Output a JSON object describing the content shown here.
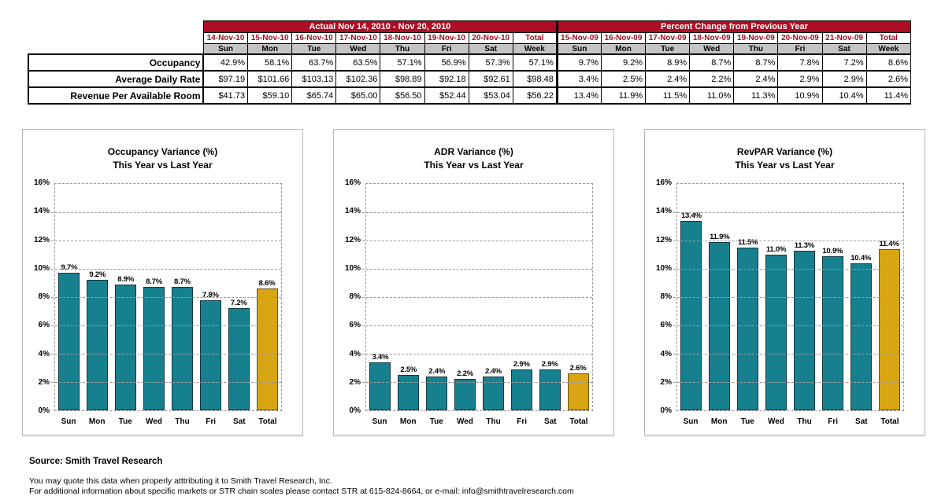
{
  "colors": {
    "header_band": "#AE0E24",
    "date_text": "#A01020",
    "day_row_bg": "#C4C4C4",
    "bar_teal": "#17808F",
    "bar_teal_border": "#113842",
    "bar_gold": "#D8A513",
    "bar_gold_border": "#6b5104"
  },
  "table": {
    "sections": [
      {
        "title": "Actual Nov 14, 2010 - Nov 20, 2010",
        "columns": [
          {
            "date": "14-Nov-10",
            "day": "Sun"
          },
          {
            "date": "15-Nov-10",
            "day": "Mon"
          },
          {
            "date": "16-Nov-10",
            "day": "Tue"
          },
          {
            "date": "17-Nov-10",
            "day": "Wed"
          },
          {
            "date": "18-Nov-10",
            "day": "Thu"
          },
          {
            "date": "19-Nov-10",
            "day": "Fri"
          },
          {
            "date": "20-Nov-10",
            "day": "Sat"
          },
          {
            "date": "Total",
            "day": "Week"
          }
        ]
      },
      {
        "title": "Percent Change from Previous Year",
        "columns": [
          {
            "date": "15-Nov-09",
            "day": "Sun"
          },
          {
            "date": "16-Nov-09",
            "day": "Mon"
          },
          {
            "date": "17-Nov-09",
            "day": "Tue"
          },
          {
            "date": "18-Nov-09",
            "day": "Wed"
          },
          {
            "date": "19-Nov-09",
            "day": "Thu"
          },
          {
            "date": "20-Nov-09",
            "day": "Fri"
          },
          {
            "date": "21-Nov-09",
            "day": "Sat"
          },
          {
            "date": "Total",
            "day": "Week"
          }
        ]
      }
    ],
    "rows": [
      {
        "label": "Occupancy",
        "values": [
          [
            "42.9%",
            "58.1%",
            "63.7%",
            "63.5%",
            "57.1%",
            "56.9%",
            "57.3%",
            "57.1%"
          ],
          [
            "9.7%",
            "9.2%",
            "8.9%",
            "8.7%",
            "8.7%",
            "7.8%",
            "7.2%",
            "8.6%"
          ]
        ]
      },
      {
        "label": "Average Daily Rate",
        "values": [
          [
            "$97.19",
            "$101.66",
            "$103.13",
            "$102.36",
            "$98.89",
            "$92.18",
            "$92.61",
            "$98.48"
          ],
          [
            "3.4%",
            "2.5%",
            "2.4%",
            "2.2%",
            "2.4%",
            "2.9%",
            "2.9%",
            "2.6%"
          ]
        ]
      },
      {
        "label": "Revenue Per Available Room",
        "values": [
          [
            "$41.73",
            "$59.10",
            "$65.74",
            "$65.00",
            "$56.50",
            "$52.44",
            "$53.04",
            "$56.22"
          ],
          [
            "13.4%",
            "11.9%",
            "11.5%",
            "11.0%",
            "11.3%",
            "10.9%",
            "10.4%",
            "11.4%"
          ]
        ]
      }
    ]
  },
  "chart_data": [
    {
      "type": "bar",
      "title": "Occupancy Variance (%)",
      "subtitle": "This Year vs Last Year",
      "categories": [
        "Sun",
        "Mon",
        "Tue",
        "Wed",
        "Thu",
        "Fri",
        "Sat",
        "Total"
      ],
      "values": [
        9.7,
        9.2,
        8.9,
        8.7,
        8.7,
        7.8,
        7.2,
        8.6
      ],
      "labels": [
        "9.7%",
        "9.2%",
        "8.9%",
        "8.7%",
        "8.7%",
        "7.8%",
        "7.2%",
        "8.6%"
      ],
      "ylim": [
        0,
        16
      ],
      "ytick_step": 2,
      "grid": true,
      "legend": "none"
    },
    {
      "type": "bar",
      "title": "ADR Variance (%)",
      "subtitle": "This Year vs Last Year",
      "categories": [
        "Sun",
        "Mon",
        "Tue",
        "Wed",
        "Thu",
        "Fri",
        "Sat",
        "Total"
      ],
      "values": [
        3.4,
        2.5,
        2.4,
        2.2,
        2.4,
        2.9,
        2.9,
        2.6
      ],
      "labels": [
        "3.4%",
        "2.5%",
        "2.4%",
        "2.2%",
        "2.4%",
        "2.9%",
        "2.9%",
        "2.6%"
      ],
      "ylim": [
        0,
        16
      ],
      "ytick_step": 2,
      "grid": true,
      "legend": "none"
    },
    {
      "type": "bar",
      "title": "RevPAR Variance (%)",
      "subtitle": "This Year vs Last Year",
      "categories": [
        "Sun",
        "Mon",
        "Tue",
        "Wed",
        "Thu",
        "Fri",
        "Sat",
        "Total"
      ],
      "values": [
        13.4,
        11.9,
        11.5,
        11.0,
        11.3,
        10.9,
        10.4,
        11.4
      ],
      "labels": [
        "13.4%",
        "11.9%",
        "11.5%",
        "11.0%",
        "11.3%",
        "10.9%",
        "10.4%",
        "11.4%"
      ],
      "ylim": [
        0,
        16
      ],
      "ytick_step": 2,
      "grid": true,
      "legend": "none"
    }
  ],
  "footer": {
    "source": "Source: Smith Travel Research",
    "line1": "You may quote this data when properly atttributing it to Smith Travel Research, Inc.",
    "line2": "For additional information about specific markets or STR chain scales please contact STR at 615-824-8664, or e-mail: info@smithtravelresearch.com"
  }
}
